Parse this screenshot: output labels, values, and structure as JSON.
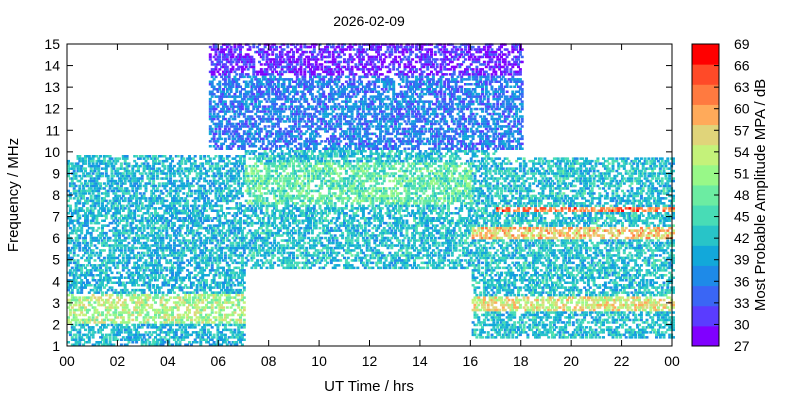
{
  "chart_data": {
    "type": "heatmap",
    "title": "2026-02-09",
    "xlabel": "UT Time / hrs",
    "ylabel": "Frequency / MHz",
    "colorbar_label": "Most Probable Amplitude MPA / dB",
    "xlim": [
      0,
      24
    ],
    "ylim": [
      1,
      15
    ],
    "x_ticks": [
      "00",
      "02",
      "04",
      "06",
      "08",
      "10",
      "12",
      "14",
      "16",
      "18",
      "20",
      "22",
      "00"
    ],
    "y_ticks": [
      "1",
      "2",
      "3",
      "4",
      "5",
      "6",
      "7",
      "8",
      "9",
      "10",
      "11",
      "12",
      "13",
      "14",
      "15"
    ],
    "colorbar_ticks": [
      "27",
      "30",
      "33",
      "36",
      "39",
      "42",
      "45",
      "48",
      "51",
      "54",
      "57",
      "60",
      "63",
      "66",
      "69"
    ],
    "colorbar_colors": [
      "#8000ff",
      "#5a3cff",
      "#3a66f5",
      "#1e8ae8",
      "#12a8da",
      "#28c4c8",
      "#48dcb6",
      "#6ceca2",
      "#98f888",
      "#c4f27a",
      "#e0d47a",
      "#ffaa5a",
      "#ff7a40",
      "#ff4a28",
      "#ff0000"
    ],
    "grid": false,
    "regions": [
      {
        "x": [
          0,
          7
        ],
        "y": [
          1,
          9.8
        ],
        "mpa": 41
      },
      {
        "x": [
          0,
          7
        ],
        "y": [
          2,
          3.4
        ],
        "mpa": 52
      },
      {
        "x": [
          5.6,
          18
        ],
        "y": [
          10,
          15
        ],
        "mpa": 36
      },
      {
        "x": [
          5.6,
          18
        ],
        "y": [
          13.5,
          15
        ],
        "mpa": 30
      },
      {
        "x": [
          7,
          17
        ],
        "y": [
          4.5,
          10
        ],
        "mpa": 42
      },
      {
        "x": [
          7,
          17
        ],
        "y": [
          7.5,
          9.5
        ],
        "mpa": 47
      },
      {
        "x": [
          16,
          24
        ],
        "y": [
          1.3,
          9.7
        ],
        "mpa": 42
      },
      {
        "x": [
          17,
          24
        ],
        "y": [
          7.2,
          7.4
        ],
        "mpa": 62
      },
      {
        "x": [
          16,
          24
        ],
        "y": [
          5.9,
          6.5
        ],
        "mpa": 58
      },
      {
        "x": [
          16,
          24
        ],
        "y": [
          2.6,
          3.2
        ],
        "mpa": 55
      }
    ]
  }
}
